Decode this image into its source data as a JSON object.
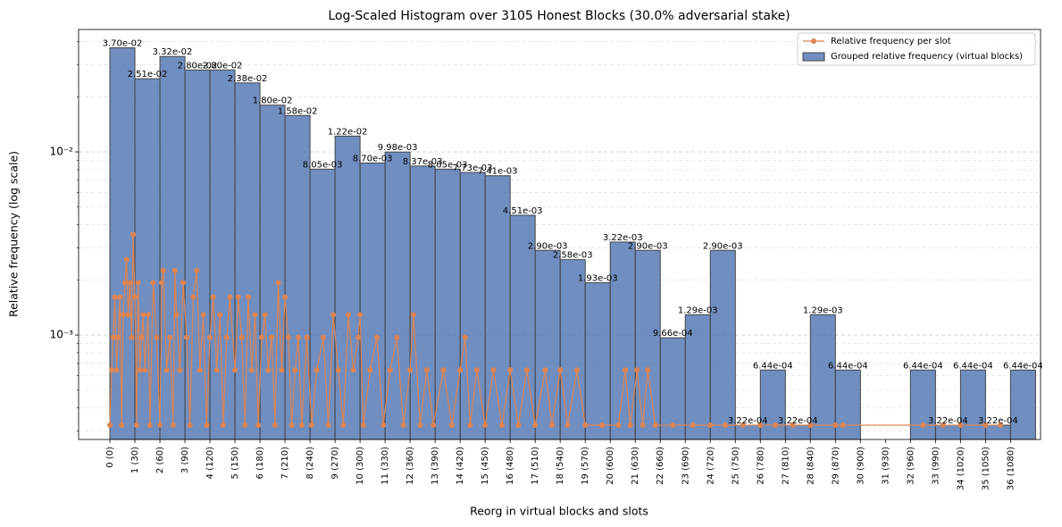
{
  "chart_data": {
    "type": "histogram",
    "title": "Log-Scaled Histogram over 3105 Honest Blocks (30.0% adversarial stake)",
    "x_label": "Reorg in virtual blocks and slots",
    "y_label": "Relative frequency (log scale)",
    "y_scale": "log",
    "grid": true,
    "legend": "upper right",
    "xlim": [
      -1.25,
      37.2
    ],
    "ylim": [
      0.000269,
      0.0466
    ],
    "yticks": [
      {
        "value": 0.001,
        "label": "10⁻³"
      },
      {
        "value": 0.01,
        "label": "10⁻²"
      }
    ],
    "yminor": [
      0.0003,
      0.0004,
      0.0005,
      0.0006,
      0.0007,
      0.0008,
      0.0009,
      0.002,
      0.003,
      0.004,
      0.005,
      0.006,
      0.007,
      0.008,
      0.009,
      0.02,
      0.03,
      0.04
    ],
    "xticks": [
      {
        "value": 0,
        "label": "0 (0)"
      },
      {
        "value": 1,
        "label": "1 (30)"
      },
      {
        "value": 2,
        "label": "2 (60)"
      },
      {
        "value": 3,
        "label": "3 (90)"
      },
      {
        "value": 4,
        "label": "4 (120)"
      },
      {
        "value": 5,
        "label": "5 (150)"
      },
      {
        "value": 6,
        "label": "6 (180)"
      },
      {
        "value": 7,
        "label": "7 (210)"
      },
      {
        "value": 8,
        "label": "8 (240)"
      },
      {
        "value": 9,
        "label": "9 (270)"
      },
      {
        "value": 10,
        "label": "10 (300)"
      },
      {
        "value": 11,
        "label": "11 (330)"
      },
      {
        "value": 12,
        "label": "12 (360)"
      },
      {
        "value": 13,
        "label": "13 (390)"
      },
      {
        "value": 14,
        "label": "14 (420)"
      },
      {
        "value": 15,
        "label": "15 (450)"
      },
      {
        "value": 16,
        "label": "16 (480)"
      },
      {
        "value": 17,
        "label": "17 (510)"
      },
      {
        "value": 18,
        "label": "18 (540)"
      },
      {
        "value": 19,
        "label": "19 (570)"
      },
      {
        "value": 20,
        "label": "20 (600)"
      },
      {
        "value": 21,
        "label": "21 (630)"
      },
      {
        "value": 22,
        "label": "22 (660)"
      },
      {
        "value": 23,
        "label": "23 (690)"
      },
      {
        "value": 24,
        "label": "24 (720)"
      },
      {
        "value": 25,
        "label": "25 (750)"
      },
      {
        "value": 26,
        "label": "26 (780)"
      },
      {
        "value": 27,
        "label": "27 (810)"
      },
      {
        "value": 28,
        "label": "28 (840)"
      },
      {
        "value": 29,
        "label": "29 (870)"
      },
      {
        "value": 30,
        "label": "30 (900)"
      },
      {
        "value": 31,
        "label": "31 (930)"
      },
      {
        "value": 32,
        "label": "32 (960)"
      },
      {
        "value": 33,
        "label": "33 (990)"
      },
      {
        "value": 34,
        "label": "34 (1020)"
      },
      {
        "value": 35,
        "label": "35 (1050)"
      },
      {
        "value": 36,
        "label": "36 (1080)"
      }
    ],
    "series": [
      {
        "name": "Relative frequency per slot",
        "type": "line",
        "color": "#dd8452",
        "x": [
          0.0,
          0.07,
          0.13,
          0.2,
          0.27,
          0.33,
          0.4,
          0.47,
          0.53,
          0.6,
          0.67,
          0.73,
          0.8,
          0.87,
          0.93,
          1.0,
          1.07,
          1.13,
          1.2,
          1.27,
          1.33,
          1.4,
          1.53,
          1.6,
          1.73,
          1.87,
          2.0,
          2.07,
          2.13,
          2.27,
          2.4,
          2.53,
          2.6,
          2.67,
          2.8,
          2.93,
          3.07,
          3.2,
          3.33,
          3.47,
          3.6,
          3.73,
          3.87,
          4.0,
          4.13,
          4.27,
          4.4,
          4.53,
          4.67,
          4.8,
          5.0,
          5.13,
          5.27,
          5.4,
          5.53,
          5.67,
          5.8,
          5.93,
          6.07,
          6.2,
          6.33,
          6.47,
          6.6,
          6.73,
          6.87,
          7.0,
          7.13,
          7.27,
          7.4,
          7.53,
          7.67,
          7.87,
          8.07,
          8.27,
          8.53,
          8.73,
          8.93,
          9.13,
          9.33,
          9.53,
          9.73,
          9.93,
          10.0,
          10.13,
          10.4,
          10.67,
          10.93,
          11.2,
          11.47,
          11.73,
          12.0,
          12.13,
          12.4,
          12.67,
          12.93,
          13.33,
          13.67,
          14.0,
          14.2,
          14.4,
          14.67,
          15.0,
          15.33,
          15.67,
          16.0,
          16.33,
          16.67,
          17.0,
          17.4,
          17.67,
          18.0,
          18.3,
          18.67,
          19.0,
          19.67,
          20.33,
          20.6,
          20.8,
          21.07,
          21.3,
          21.5,
          21.8,
          22.5,
          23.3,
          24.0,
          24.6,
          25.3,
          26.0,
          26.6,
          27.3,
          28.0,
          29.0,
          29.3,
          32.5,
          33.3,
          34.0,
          35.0,
          35.6
        ],
        "values": [
          0.000322,
          0.000644,
          0.00097,
          0.00161,
          0.000644,
          0.00097,
          0.00161,
          0.000322,
          0.00129,
          0.00193,
          0.00258,
          0.00129,
          0.00193,
          0.00097,
          0.00354,
          0.00161,
          0.000322,
          0.00193,
          0.000644,
          0.00097,
          0.00129,
          0.000644,
          0.00129,
          0.000322,
          0.00193,
          0.00097,
          0.000322,
          0.00193,
          0.00225,
          0.000644,
          0.00097,
          0.000322,
          0.00225,
          0.00129,
          0.000644,
          0.00193,
          0.00097,
          0.000322,
          0.00161,
          0.00225,
          0.000644,
          0.00129,
          0.000322,
          0.00097,
          0.00161,
          0.000644,
          0.00129,
          0.000322,
          0.00097,
          0.00161,
          0.000644,
          0.00161,
          0.00097,
          0.000322,
          0.00161,
          0.000644,
          0.00129,
          0.000322,
          0.00097,
          0.00129,
          0.000644,
          0.00097,
          0.000322,
          0.00193,
          0.000644,
          0.00161,
          0.00097,
          0.000322,
          0.000644,
          0.00097,
          0.000322,
          0.00097,
          0.000322,
          0.000644,
          0.00097,
          0.000322,
          0.00129,
          0.000644,
          0.000322,
          0.00129,
          0.000644,
          0.00097,
          0.00129,
          0.000322,
          0.000644,
          0.00097,
          0.000322,
          0.000644,
          0.00097,
          0.000322,
          0.000644,
          0.00129,
          0.000322,
          0.000644,
          0.000322,
          0.000644,
          0.000322,
          0.000644,
          0.00097,
          0.000322,
          0.000644,
          0.000322,
          0.000644,
          0.000322,
          0.000644,
          0.000322,
          0.000644,
          0.000322,
          0.000644,
          0.000322,
          0.000644,
          0.000322,
          0.000644,
          0.000322,
          0.000322,
          0.000322,
          0.000644,
          0.000322,
          0.000644,
          0.000322,
          0.000644,
          0.000322,
          0.000322,
          0.000322,
          0.000322,
          0.000322,
          0.000322,
          0.000322,
          0.000322,
          0.000322,
          0.000322,
          0.000322,
          0.000322,
          0.000322,
          0.000322,
          0.000322,
          0.000322,
          0.000322
        ]
      },
      {
        "name": "Grouped relative frequency (virtual blocks)",
        "type": "histogram",
        "color": "#4c72b0",
        "bins": [
          0,
          1,
          2,
          3,
          4,
          5,
          6,
          7,
          8,
          9,
          10,
          11,
          12,
          13,
          14,
          15,
          16,
          17,
          18,
          19,
          20,
          21,
          22,
          23,
          24,
          25,
          26,
          27,
          28,
          29,
          30,
          31,
          32,
          33,
          34,
          35,
          36,
          37
        ],
        "values": [
          0.037,
          0.0251,
          0.0332,
          0.028,
          0.028,
          0.0238,
          0.018,
          0.0158,
          0.00805,
          0.0122,
          0.0087,
          0.00998,
          0.00837,
          0.00805,
          0.00773,
          0.00741,
          0.00451,
          0.0029,
          0.00258,
          0.00193,
          0.00322,
          0.0029,
          0.000966,
          0.00129,
          0.0029,
          0.000322,
          0.000644,
          0.000322,
          0.00129,
          0.000644,
          null,
          null,
          0.000644,
          0.000322,
          0.000644,
          0.000322,
          0.000644
        ],
        "value_labels": [
          "3.70e-02",
          "2.51e-02",
          "3.32e-02",
          "2.80e-02",
          "2.80e-02",
          "2.38e-02",
          "1.80e-02",
          "1.58e-02",
          "8.05e-03",
          "1.22e-02",
          "8.70e-03",
          "9.98e-03",
          "8.37e-03",
          "8.05e-03",
          "7.73e-03",
          "7.41e-03",
          "4.51e-03",
          "2.90e-03",
          "2.58e-03",
          "1.93e-03",
          "3.22e-03",
          "2.90e-03",
          "9.66e-04",
          "1.29e-03",
          "2.90e-03",
          "3.22e-04",
          "6.44e-04",
          "3.22e-04",
          "1.29e-03",
          "6.44e-04",
          null,
          null,
          "6.44e-04",
          "3.22e-04",
          "6.44e-04",
          "3.22e-04",
          "6.44e-04"
        ]
      }
    ]
  }
}
